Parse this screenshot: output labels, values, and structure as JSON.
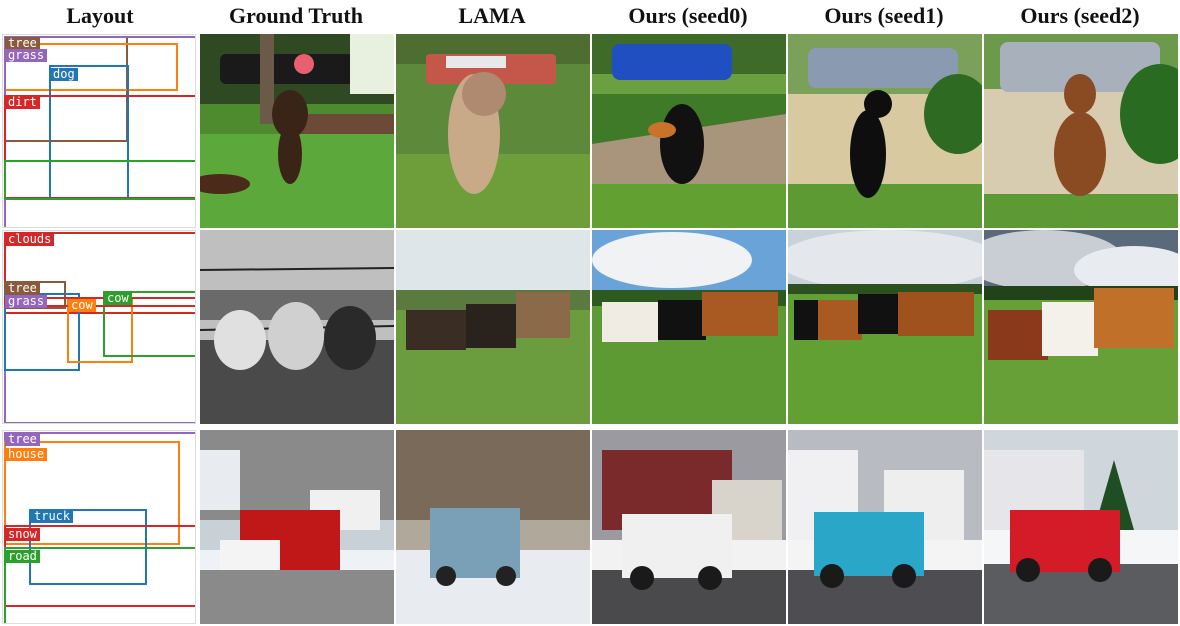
{
  "columns": [
    "Layout",
    "Ground Truth",
    "LAMA",
    "Ours (seed0)",
    "Ours (seed1)",
    "Ours (seed2)"
  ],
  "legend_colors": {
    "tree": "#8B5A3C",
    "grass": "#9467bd",
    "dog": "#1f77b4",
    "dirt": "#d62728",
    "green": "#2ca02c",
    "clouds": "#d62728",
    "cow": "#ff7f0e",
    "house": "#ff7f0e",
    "truck": "#1f77b4",
    "snow": "#d62728",
    "road": "#2ca02c"
  },
  "rows": [
    {
      "layout_labels": {
        "tree": "tree",
        "grass": "grass",
        "dog": "dog",
        "dirt": "dirt"
      },
      "images": [
        "dog-frisbee-ground-truth",
        "dog-lama",
        "dog-seed0",
        "dog-seed1",
        "dog-seed2"
      ]
    },
    {
      "layout_labels": {
        "clouds": "clouds",
        "tree": "tree",
        "grass": "grass",
        "cow1": "cow",
        "cow2": "cow"
      },
      "images": [
        "cows-ground-truth",
        "cows-lama",
        "cows-seed0",
        "cows-seed1",
        "cows-seed2"
      ]
    },
    {
      "layout_labels": {
        "tree": "tree",
        "house": "house",
        "truck": "truck",
        "snow": "snow",
        "road": "road"
      },
      "images": [
        "truck-ground-truth",
        "truck-lama",
        "truck-seed0",
        "truck-seed1",
        "truck-seed2"
      ]
    }
  ]
}
